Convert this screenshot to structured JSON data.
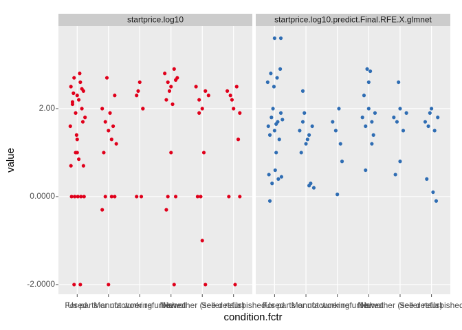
{
  "chart_data": {
    "type": "scatter",
    "x_label": "condition.fctr",
    "y_label": "value",
    "categories": [
      "Used",
      "For parts or not working",
      "Manufacturer refurbished",
      "New",
      "New other (see details)",
      "Seller refurbished"
    ],
    "xlim": [
      0.4,
      6.6
    ],
    "ylim": [
      -2.22,
      3.875
    ],
    "yticks": [
      {
        "value": -2,
        "label": "-2.0000"
      },
      {
        "value": 0,
        "label": "0.0000"
      },
      {
        "value": 2,
        "label": "2.00"
      }
    ],
    "grid": true,
    "panels": [
      {
        "title": "startprice.log10",
        "color": "#e0001b",
        "x": [
          0.8,
          0.9,
          1.0,
          1.1,
          1.2,
          0.85,
          0.95,
          1.05,
          1.15,
          1.25,
          0.78,
          0.88,
          0.98,
          1.08,
          1.18,
          0.82,
          0.92,
          1.02,
          1.12,
          1.22,
          0.9,
          1.1,
          0.8,
          1.0,
          1.2,
          0.95,
          1.05,
          0.85,
          1.15,
          1.0,
          1.8,
          1.9,
          2.0,
          2.1,
          2.2,
          1.85,
          1.95,
          2.05,
          2.15,
          2.25,
          1.9,
          2.1,
          2.0,
          1.8,
          2.2,
          2.9,
          3.0,
          3.1,
          2.95,
          3.05,
          2.9,
          3.1,
          3.8,
          3.9,
          4.0,
          4.1,
          4.2,
          3.85,
          3.95,
          4.05,
          4.15,
          3.9,
          4.1,
          4.0,
          3.85,
          4.15,
          4.8,
          4.9,
          5.0,
          5.1,
          5.2,
          4.85,
          5.0,
          5.05,
          4.95,
          5.1,
          4.9,
          5.8,
          5.9,
          6.0,
          6.1,
          6.2,
          5.85,
          6.05,
          6.15,
          5.95,
          6.2
        ],
        "values": [
          2.5,
          2.7,
          2.3,
          2.6,
          2.4,
          2.1,
          1.9,
          2.2,
          2.0,
          1.8,
          1.6,
          2.35,
          1.4,
          2.8,
          1.7,
          0,
          0,
          0,
          0,
          0,
          -2,
          -2,
          0.7,
          1.0,
          0.7,
          1.0,
          0.85,
          2.15,
          2.45,
          1.3,
          2.0,
          1.7,
          1.5,
          1.3,
          2.3,
          1.0,
          2.7,
          1.9,
          1.6,
          1.2,
          0,
          0,
          -2,
          -0.3,
          0,
          2.3,
          2.6,
          2.0,
          2.4,
          0,
          0,
          2.0,
          2.8,
          2.6,
          2.5,
          2.9,
          2.7,
          2.2,
          2.4,
          2.1,
          0,
          0,
          -2,
          1.0,
          -0.3,
          2.65,
          2.5,
          2.2,
          2.0,
          2.4,
          2.3,
          0,
          -1,
          1.0,
          0,
          -2,
          1.9,
          2.4,
          2.3,
          2.0,
          2.5,
          1.9,
          0,
          -2,
          1.3,
          2.2,
          0
        ]
      },
      {
        "title": "startprice.log10.predict.Final.RFE.X.glmnet",
        "color": "#2f6db3",
        "x": [
          0.8,
          0.9,
          1.0,
          1.1,
          1.2,
          0.85,
          0.95,
          1.05,
          1.15,
          1.25,
          0.78,
          0.88,
          0.98,
          1.08,
          1.18,
          0.82,
          0.92,
          1.02,
          1.12,
          1.22,
          1.0,
          1.2,
          0.85,
          1.05,
          1.8,
          1.9,
          2.0,
          2.1,
          2.2,
          1.85,
          1.95,
          2.05,
          2.15,
          2.25,
          1.9,
          2.1,
          2.85,
          2.95,
          3.05,
          3.15,
          3.0,
          3.1,
          3.8,
          3.9,
          4.0,
          4.1,
          4.2,
          3.85,
          3.95,
          4.05,
          4.15,
          3.9,
          4.1,
          4.0,
          4.8,
          4.9,
          5.0,
          5.1,
          5.2,
          4.85,
          5.0,
          4.95,
          5.8,
          5.9,
          6.0,
          6.1,
          6.2,
          5.85,
          6.05,
          6.15,
          5.95
        ],
        "values": [
          1.6,
          1.8,
          1.5,
          1.7,
          1.9,
          1.4,
          2.0,
          1.65,
          1.3,
          1.75,
          2.6,
          2.8,
          2.5,
          2.7,
          2.9,
          0.5,
          0.3,
          0.6,
          0.4,
          0.45,
          3.6,
          3.6,
          -0.1,
          1.0,
          1.5,
          1.7,
          1.2,
          1.4,
          1.6,
          1.0,
          1.9,
          1.3,
          0.3,
          0.2,
          2.4,
          0.25,
          1.7,
          1.5,
          2.0,
          0.8,
          0.05,
          1.2,
          1.8,
          1.6,
          2.0,
          1.7,
          1.9,
          2.3,
          2.9,
          2.85,
          1.4,
          0.6,
          1.2,
          2.6,
          1.8,
          1.7,
          2.0,
          1.5,
          1.9,
          0.5,
          0.8,
          2.6,
          1.7,
          1.6,
          2.0,
          1.5,
          1.8,
          0.4,
          0.1,
          -0.1,
          1.9
        ]
      }
    ]
  }
}
